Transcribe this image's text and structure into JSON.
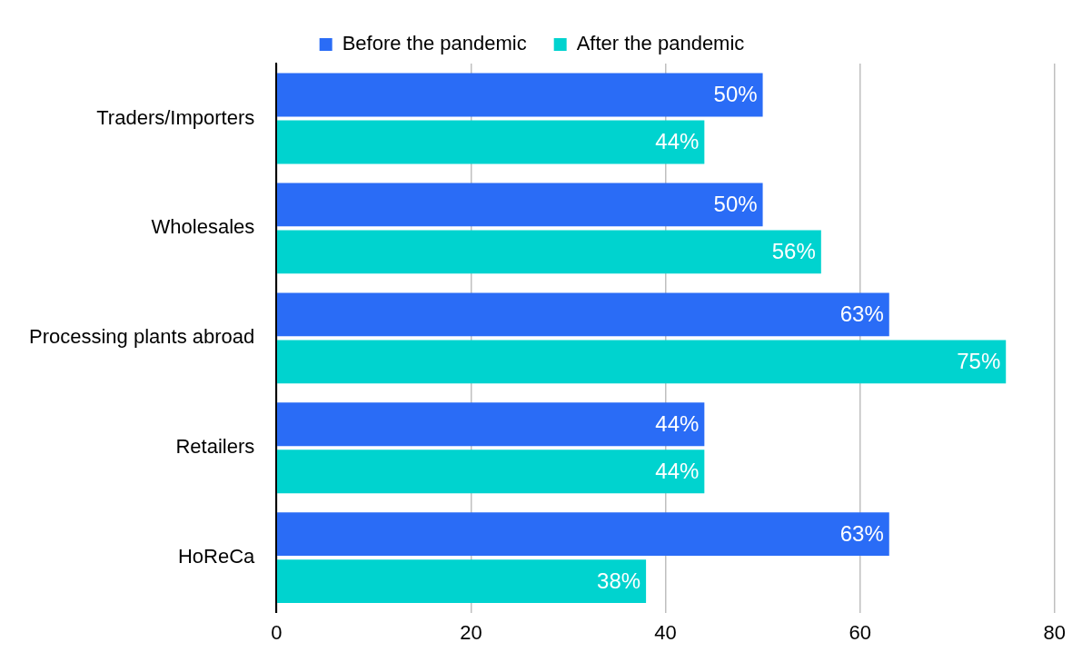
{
  "chart_data": {
    "type": "bar",
    "orientation": "horizontal",
    "categories": [
      "Traders/Importers",
      "Wholesales",
      "Processing plants abroad",
      "Retailers",
      "HoReCa"
    ],
    "series": [
      {
        "name": "Before the pandemic",
        "color": "#2a6cf6",
        "values": [
          50,
          50,
          63,
          44,
          63
        ],
        "value_labels": [
          "50%",
          "50%",
          "63%",
          "44%",
          "63%"
        ]
      },
      {
        "name": "After the pandemic",
        "color": "#00d3cf",
        "values": [
          44,
          56,
          75,
          44,
          38
        ],
        "value_labels": [
          "44%",
          "56%",
          "75%",
          "44%",
          "38%"
        ]
      }
    ],
    "xlim": [
      0,
      80
    ],
    "xticks": [
      0,
      20,
      40,
      60,
      80
    ],
    "grid": "x",
    "legend": "top"
  }
}
